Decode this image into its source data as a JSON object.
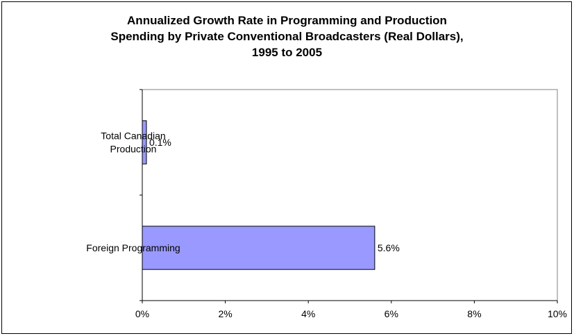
{
  "chart_data": {
    "type": "bar",
    "orientation": "horizontal",
    "title_lines": [
      "Annualized Growth Rate in Programming and Production",
      "Spending by Private Conventional Broadcasters (Real Dollars),",
      "1995 to 2005"
    ],
    "categories": [
      [
        "Total Canadian",
        "Production"
      ],
      [
        "Foreign Programming"
      ]
    ],
    "values": [
      0.1,
      5.6
    ],
    "value_labels": [
      "0.1%",
      "5.6%"
    ],
    "x_ticks": [
      0,
      2,
      4,
      6,
      8,
      10
    ],
    "x_tick_labels": [
      "0%",
      "2%",
      "4%",
      "6%",
      "8%",
      "10%"
    ],
    "xlim": [
      0,
      10
    ],
    "bar_color": "#9999ff",
    "grid": false,
    "legend": false
  }
}
